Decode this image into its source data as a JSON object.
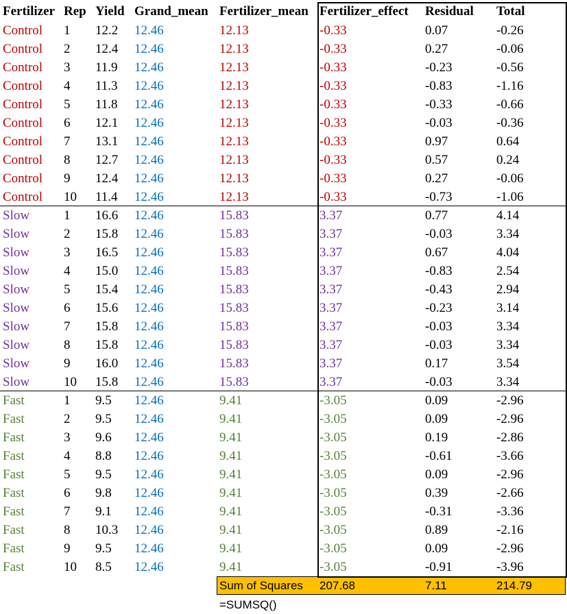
{
  "table": {
    "header": [
      "Fertilizer",
      "Rep",
      "Yield",
      "Grand_mean",
      "Fertilizer_mean",
      "Fertilizer_effect",
      "Residual",
      "Total"
    ],
    "groups": [
      {
        "rows": [
          [
            "Control",
            "1",
            "12.2",
            "12.46",
            "12.13",
            "-0.33",
            "0.07",
            "-0.26"
          ],
          [
            "Control",
            "2",
            "12.4",
            "12.46",
            "12.13",
            "-0.33",
            "0.27",
            "-0.06"
          ],
          [
            "Control",
            "3",
            "11.9",
            "12.46",
            "12.13",
            "-0.33",
            "-0.23",
            "-0.56"
          ],
          [
            "Control",
            "4",
            "11.3",
            "12.46",
            "12.13",
            "-0.33",
            "-0.83",
            "-1.16"
          ],
          [
            "Control",
            "5",
            "11.8",
            "12.46",
            "12.13",
            "-0.33",
            "-0.33",
            "-0.66"
          ],
          [
            "Control",
            "6",
            "12.1",
            "12.46",
            "12.13",
            "-0.33",
            "-0.03",
            "-0.36"
          ],
          [
            "Control",
            "7",
            "13.1",
            "12.46",
            "12.13",
            "-0.33",
            "0.97",
            "0.64"
          ],
          [
            "Control",
            "8",
            "12.7",
            "12.46",
            "12.13",
            "-0.33",
            "0.57",
            "0.24"
          ],
          [
            "Control",
            "9",
            "12.4",
            "12.46",
            "12.13",
            "-0.33",
            "0.27",
            "-0.06"
          ],
          [
            "Control",
            "10",
            "11.4",
            "12.46",
            "12.13",
            "-0.33",
            "-0.73",
            "-1.06"
          ]
        ]
      },
      {
        "rows": [
          [
            "Slow",
            "1",
            "16.6",
            "12.46",
            "15.83",
            "3.37",
            "0.77",
            "4.14"
          ],
          [
            "Slow",
            "2",
            "15.8",
            "12.46",
            "15.83",
            "3.37",
            "-0.03",
            "3.34"
          ],
          [
            "Slow",
            "3",
            "16.5",
            "12.46",
            "15.83",
            "3.37",
            "0.67",
            "4.04"
          ],
          [
            "Slow",
            "4",
            "15.0",
            "12.46",
            "15.83",
            "3.37",
            "-0.83",
            "2.54"
          ],
          [
            "Slow",
            "5",
            "15.4",
            "12.46",
            "15.83",
            "3.37",
            "-0.43",
            "2.94"
          ],
          [
            "Slow",
            "6",
            "15.6",
            "12.46",
            "15.83",
            "3.37",
            "-0.23",
            "3.14"
          ],
          [
            "Slow",
            "7",
            "15.8",
            "12.46",
            "15.83",
            "3.37",
            "-0.03",
            "3.34"
          ],
          [
            "Slow",
            "8",
            "15.8",
            "12.46",
            "15.83",
            "3.37",
            "-0.03",
            "3.34"
          ],
          [
            "Slow",
            "9",
            "16.0",
            "12.46",
            "15.83",
            "3.37",
            "0.17",
            "3.54"
          ],
          [
            "Slow",
            "10",
            "15.8",
            "12.46",
            "15.83",
            "3.37",
            "-0.03",
            "3.34"
          ]
        ]
      },
      {
        "rows": [
          [
            "Fast",
            "1",
            "9.5",
            "12.46",
            "9.41",
            "-3.05",
            "0.09",
            "-2.96"
          ],
          [
            "Fast",
            "2",
            "9.5",
            "12.46",
            "9.41",
            "-3.05",
            "0.09",
            "-2.96"
          ],
          [
            "Fast",
            "3",
            "9.6",
            "12.46",
            "9.41",
            "-3.05",
            "0.19",
            "-2.86"
          ],
          [
            "Fast",
            "4",
            "8.8",
            "12.46",
            "9.41",
            "-3.05",
            "-0.61",
            "-3.66"
          ],
          [
            "Fast",
            "5",
            "9.5",
            "12.46",
            "9.41",
            "-3.05",
            "0.09",
            "-2.96"
          ],
          [
            "Fast",
            "6",
            "9.8",
            "12.46",
            "9.41",
            "-3.05",
            "0.39",
            "-2.66"
          ],
          [
            "Fast",
            "7",
            "9.1",
            "12.46",
            "9.41",
            "-3.05",
            "-0.31",
            "-3.36"
          ],
          [
            "Fast",
            "8",
            "10.3",
            "12.46",
            "9.41",
            "-3.05",
            "0.89",
            "-2.16"
          ],
          [
            "Fast",
            "9",
            "9.5",
            "12.46",
            "9.41",
            "-3.05",
            "0.09",
            "-2.96"
          ],
          [
            "Fast",
            "10",
            "8.5",
            "12.46",
            "9.41",
            "-3.05",
            "-0.91",
            "-3.96"
          ]
        ]
      }
    ],
    "sum_row": {
      "label": "Sum of Squares",
      "values": [
        "207.68",
        "7.11",
        "214.79"
      ]
    }
  },
  "note": "=SUMSQ()"
}
